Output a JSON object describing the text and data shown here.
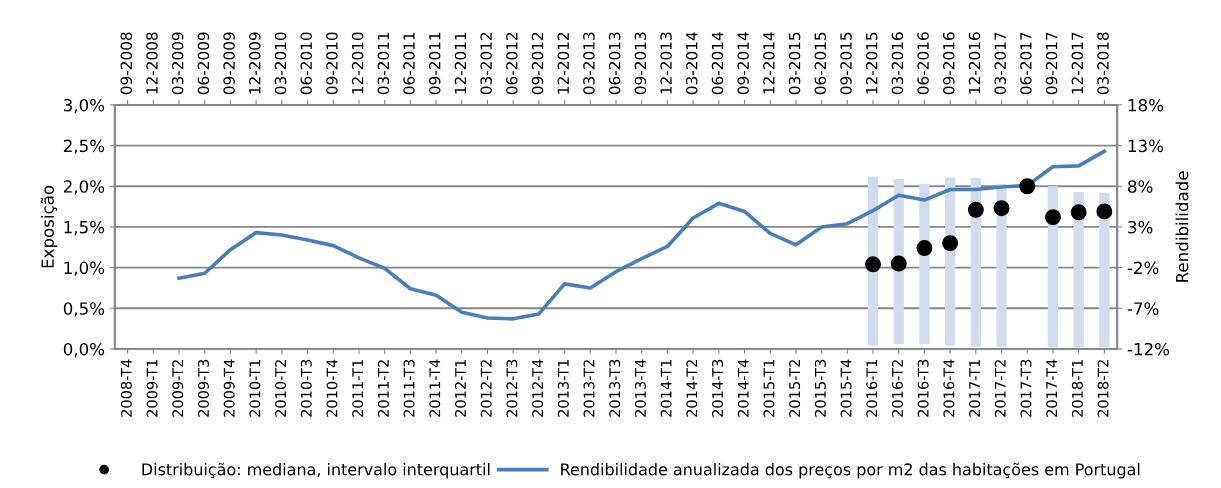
{
  "chart_data": {
    "type": "line",
    "ylabel": "Exposição",
    "y2label": "Rendibilidade",
    "categories": [
      "2008-T4",
      "2009-T1",
      "2009-T2",
      "2009-T3",
      "2009-T4",
      "2010-T1",
      "2010-T2",
      "2010-T3",
      "2010-T4",
      "2011-T1",
      "2011-T2",
      "2011-T3",
      "2011-T4",
      "2012-T1",
      "2012-T2",
      "2012-T3",
      "2012-T4",
      "2013-T1",
      "2013-T2",
      "2013-T3",
      "2013-T4",
      "2014-T1",
      "2014-T2",
      "2014-T3",
      "2014-T4",
      "2015-T1",
      "2015-T2",
      "2015-T3",
      "2015-T4",
      "2016-T1",
      "2016-T2",
      "2016-T3",
      "2016-T4",
      "2017-T1",
      "2017-T2",
      "2017-T3",
      "2017-T4",
      "2018-T1",
      "2018-T2"
    ],
    "annotations": [
      "09-2008",
      "12-2008",
      "03-2009",
      "06-2009",
      "09-2009",
      "12-2009",
      "03-2010",
      "06-2010",
      "09-2010",
      "12-2010",
      "03-2011",
      "06-2011",
      "09-2011",
      "12-2011",
      "03-2012",
      "06-2012",
      "09-2012",
      "12-2012",
      "03-2013",
      "06-2013",
      "09-2013",
      "12-2013",
      "03-2014",
      "06-2014",
      "09-2014",
      "12-2014",
      "03-2015",
      "06-2015",
      "09-2015",
      "12-2015",
      "03-2016",
      "06-2016",
      "09-2016",
      "12-2016",
      "03-2017",
      "06-2017",
      "09-2017",
      "12-2017",
      "03-2018"
    ],
    "ylim": [
      0,
      3
    ],
    "yticks": [
      {
        "value": 0,
        "label": "0,0%"
      },
      {
        "value": 0.5,
        "label": "0,5%"
      },
      {
        "value": 1,
        "label": "1,0%"
      },
      {
        "value": 1.5,
        "label": "1,5%"
      },
      {
        "value": 2,
        "label": "2,0%"
      },
      {
        "value": 2.5,
        "label": "2,5%"
      },
      {
        "value": 3,
        "label": "3,0%"
      }
    ],
    "y2lim": [
      -12,
      18
    ],
    "y2ticks": [
      {
        "value": -12,
        "label": "-12%"
      },
      {
        "value": -7,
        "label": "-7%"
      },
      {
        "value": -2,
        "label": "-2%"
      },
      {
        "value": 3,
        "label": "3%"
      },
      {
        "value": 8,
        "label": "8%"
      },
      {
        "value": 13,
        "label": "13%"
      },
      {
        "value": 18,
        "label": "18%"
      }
    ],
    "grid": "y",
    "legend": "bottom",
    "series": [
      {
        "type": "bar",
        "color": "#d0dced",
        "base": [
          null,
          null,
          null,
          null,
          null,
          null,
          null,
          null,
          null,
          null,
          null,
          null,
          null,
          null,
          null,
          null,
          null,
          null,
          null,
          null,
          null,
          null,
          null,
          null,
          null,
          null,
          null,
          null,
          null,
          0.04,
          0.06,
          0.06,
          0.04,
          0.03,
          0.03,
          null,
          0.02,
          0.02,
          0.02
        ],
        "values": [
          null,
          null,
          null,
          null,
          null,
          null,
          null,
          null,
          null,
          null,
          null,
          null,
          null,
          null,
          null,
          null,
          null,
          null,
          null,
          null,
          null,
          null,
          null,
          null,
          null,
          null,
          null,
          null,
          null,
          2.08,
          2.03,
          1.97,
          2.07,
          2.07,
          2.0,
          null,
          1.98,
          1.91,
          1.9
        ]
      },
      {
        "type": "scatter",
        "name": "Distribuição: mediana, intervalo interquartil",
        "color": "#000000",
        "marker": "circle",
        "values": [
          null,
          null,
          null,
          null,
          null,
          null,
          null,
          null,
          null,
          null,
          null,
          null,
          null,
          null,
          null,
          null,
          null,
          null,
          null,
          null,
          null,
          null,
          null,
          null,
          null,
          null,
          null,
          null,
          null,
          1.04,
          1.05,
          1.24,
          1.3,
          1.71,
          1.73,
          2.0,
          1.62,
          1.68,
          1.69
        ]
      },
      {
        "axis": "y2",
        "name": "Rendibilidade anualizada dos preços por m2 das habitações em Portugal",
        "color": "#4a7ebb",
        "line_style": "solid",
        "values": [
          null,
          null,
          -3.3,
          -2.7,
          0.2,
          2.3,
          2.0,
          1.4,
          0.7,
          -0.8,
          -2.1,
          -4.6,
          -5.4,
          -7.5,
          -8.2,
          -8.3,
          -7.7,
          -4.0,
          -4.5,
          -2.5,
          -0.9,
          0.6,
          4.1,
          5.9,
          4.9,
          2.2,
          0.8,
          3.0,
          3.4,
          5.0,
          6.9,
          6.3,
          7.6,
          7.6,
          7.9,
          8.1,
          10.4,
          10.5,
          12.3
        ]
      }
    ]
  }
}
